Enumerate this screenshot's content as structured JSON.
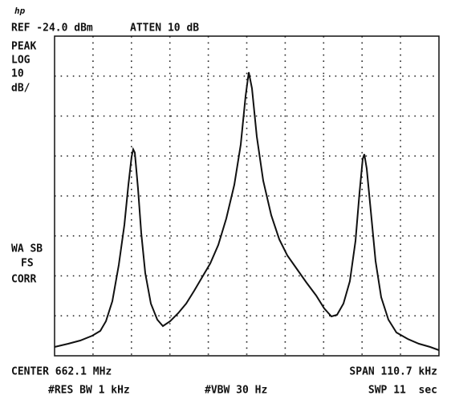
{
  "header": {
    "ref": "REF -24.0 dBm",
    "atten": "ATTEN 10 dB"
  },
  "left_labels": {
    "detector": [
      "PEAK",
      "LOG",
      "10",
      "dB/"
    ],
    "correction": [
      "WA SB",
      "FS",
      "CORR"
    ]
  },
  "footer": {
    "center": "CENTER 662.1 MHz",
    "span": "SPAN 110.7 kHz",
    "res_bw": "#RES BW 1 kHz",
    "vbw": "#VBW 30 Hz",
    "sweep": "SWP 11  sec"
  }
}
